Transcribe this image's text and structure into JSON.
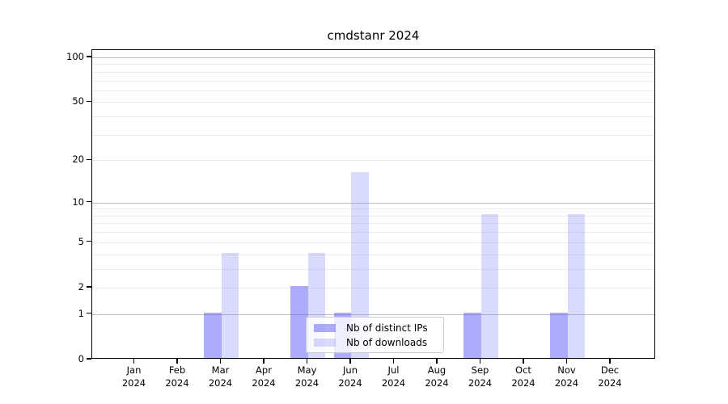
{
  "chart_data": {
    "type": "bar",
    "title": "cmdstanr 2024",
    "categories": [
      "Jan",
      "Feb",
      "Mar",
      "Apr",
      "May",
      "Jun",
      "Jul",
      "Aug",
      "Sep",
      "Oct",
      "Nov",
      "Dec"
    ],
    "category_year": "2024",
    "series": [
      {
        "name": "Nb of distinct IPs",
        "color": "rgba(95,95,245,0.52)",
        "color_hex": "#a9a9f7",
        "values": [
          0,
          0,
          1,
          0,
          2,
          1,
          0,
          0,
          1,
          0,
          1,
          0
        ]
      },
      {
        "name": "Nb of downloads",
        "color": "rgba(120,120,245,0.27)",
        "color_hex": "#dcdcf8",
        "values": [
          0,
          0,
          4,
          0,
          4,
          16,
          0,
          0,
          8,
          0,
          8,
          0
        ]
      }
    ],
    "xlabel": "",
    "ylabel": "",
    "yscale": "log1p",
    "ylim": [
      0,
      100
    ],
    "yticks": [
      0,
      1,
      2,
      5,
      10,
      20,
      50,
      100
    ],
    "grid": {
      "major": [
        1,
        10,
        100
      ],
      "minor": [
        2,
        3,
        4,
        5,
        6,
        7,
        8,
        9,
        20,
        30,
        40,
        50,
        60,
        70,
        80,
        90
      ],
      "color_major": "#bdbdbd",
      "color_minor": "#ececec"
    },
    "legend": {
      "position": "lower center, inside plot",
      "entries": [
        "Nb of distinct IPs",
        "Nb of downloads"
      ]
    }
  }
}
